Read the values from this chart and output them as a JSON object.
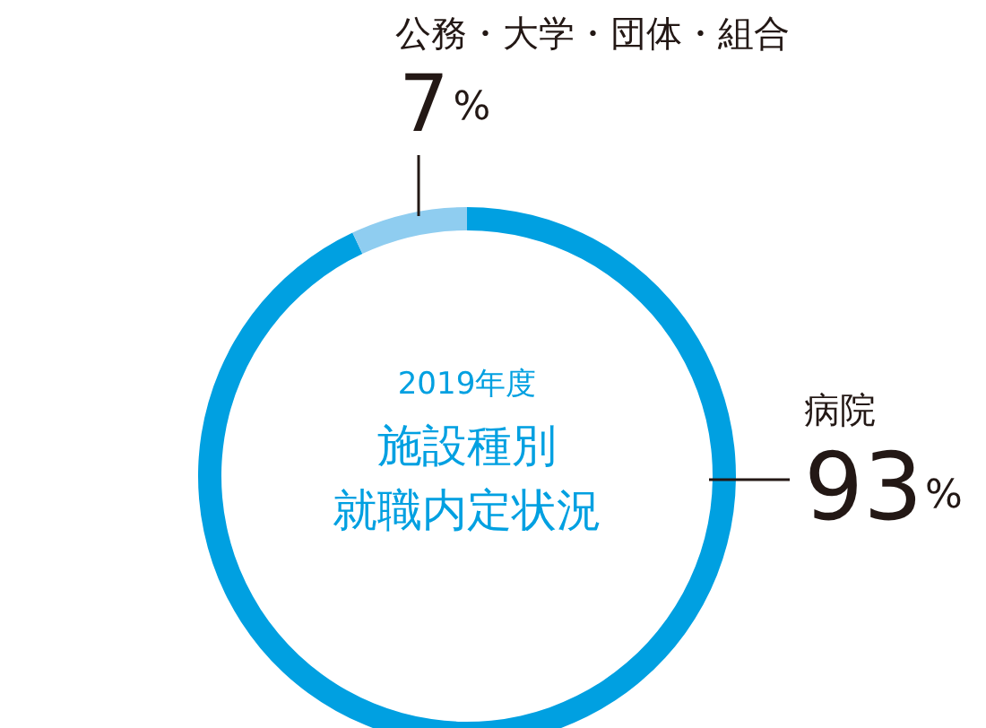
{
  "chart_data": {
    "type": "donut",
    "title": "2019年度",
    "subtitle": "施設種別就職内定状況",
    "categories": [
      "病院",
      "公務・大学・団体・組合"
    ],
    "values": [
      93,
      7
    ],
    "colors": [
      "#00a0e1",
      "#8fcdf0"
    ],
    "value_labels": [
      "93%",
      "7%"
    ]
  }
}
